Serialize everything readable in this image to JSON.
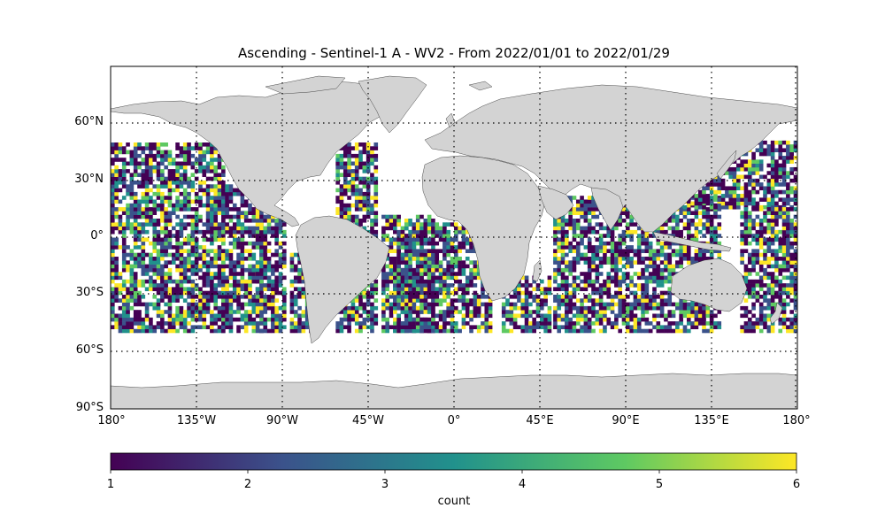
{
  "title": "Ascending - Sentinel-1 A - WV2 - From 2022/01/01 to 2022/01/29",
  "lat_ticks": [
    "60°N",
    "30°N",
    "0°",
    "30°S",
    "60°S",
    "90°S"
  ],
  "lon_ticks": [
    "180°",
    "135°W",
    "90°W",
    "45°W",
    "0°",
    "45°E",
    "90°E",
    "135°E",
    "180°"
  ],
  "colorbar": {
    "label": "count",
    "ticks": [
      "1",
      "2",
      "3",
      "4",
      "5",
      "6"
    ],
    "colormap": "viridis",
    "min": 1,
    "max": 6
  },
  "chart_data": {
    "type": "heatmap",
    "title": "Ascending - Sentinel-1 A - WV2 - From 2022/01/01 to 2022/01/29",
    "projection": "plate carree",
    "lon_range": [
      -180,
      180
    ],
    "lat_range": [
      -90,
      90
    ],
    "value_range": [
      1,
      6
    ],
    "coverage_lat_range": [
      -50,
      50
    ],
    "grid": true,
    "land_color": "#d3d3d3"
  }
}
